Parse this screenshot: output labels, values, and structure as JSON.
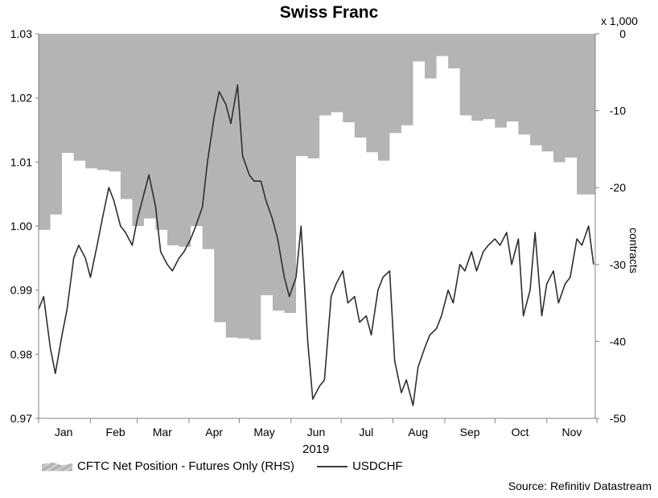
{
  "title": "Swiss Franc",
  "legend": {
    "area_label": "CFTC Net Position - Futures Only (RHS)",
    "line_label": "USDCHF"
  },
  "source": "Source: Refinitiv Datastream",
  "colors": {
    "area_fill": "#b4b4b4",
    "line": "#2e2e2e",
    "plot_bg": "#ffffff",
    "axis": "#808080"
  },
  "chart_data": {
    "type": "line",
    "title": "Swiss Franc",
    "xlabel": "2019",
    "x_tick_labels": [
      "Jan",
      "Feb",
      "Mar",
      "Apr",
      "May",
      "Jun",
      "Jul",
      "Aug",
      "Sep",
      "Oct",
      "Nov"
    ],
    "x_range": [
      "2019-01-01",
      "2019-11-30"
    ],
    "y_left": {
      "range": [
        0.97,
        1.03
      ],
      "ticks": [
        "0.97",
        "0.98",
        "0.99",
        "1.00",
        "1.01",
        "1.02",
        "1.03"
      ]
    },
    "y_right": {
      "label": "contracts",
      "multiplier_label": "x 1,000",
      "range": [
        -50,
        0
      ],
      "ticks": [
        "-50",
        "-40",
        "-30",
        "-20",
        "-10",
        "0"
      ]
    },
    "grid": false,
    "legend_position": "bottom",
    "series": [
      {
        "name": "CFTC Net Position - Futures Only (RHS)",
        "type": "area",
        "axis": "right",
        "x": [
          "2019-01-01",
          "2019-01-08",
          "2019-01-15",
          "2019-01-22",
          "2019-01-29",
          "2019-02-05",
          "2019-02-12",
          "2019-02-19",
          "2019-02-26",
          "2019-03-05",
          "2019-03-12",
          "2019-03-19",
          "2019-03-26",
          "2019-04-02",
          "2019-04-09",
          "2019-04-16",
          "2019-04-23",
          "2019-04-30",
          "2019-05-07",
          "2019-05-14",
          "2019-05-21",
          "2019-05-28",
          "2019-06-04",
          "2019-06-11",
          "2019-06-18",
          "2019-06-25",
          "2019-07-02",
          "2019-07-09",
          "2019-07-16",
          "2019-07-23",
          "2019-07-30",
          "2019-08-06",
          "2019-08-13",
          "2019-08-20",
          "2019-08-27",
          "2019-09-03",
          "2019-09-10",
          "2019-09-17",
          "2019-09-24",
          "2019-10-01",
          "2019-10-08",
          "2019-10-15",
          "2019-10-22",
          "2019-10-29",
          "2019-11-05",
          "2019-11-12",
          "2019-11-19",
          "2019-11-26",
          "2019-11-30"
        ],
        "values": [
          -25.5,
          -23.5,
          -15.5,
          -16.5,
          -17.5,
          -17.7,
          -17.9,
          -21.5,
          -25,
          -24,
          -25.5,
          -27.5,
          -27.7,
          -25,
          -28,
          -37.5,
          -39.5,
          -39.6,
          -39.8,
          -34,
          -36,
          -36.3,
          -15.9,
          -16.2,
          -10.6,
          -10.2,
          -11.5,
          -13.5,
          -15.4,
          -16.5,
          -12.9,
          -11.9,
          -3.6,
          -5.8,
          -2.9,
          -4.5,
          -10.6,
          -11.3,
          -11.1,
          -12.2,
          -11.4,
          -13.1,
          -14.5,
          -15.3,
          -16.7,
          -16.1,
          -20.9,
          -20.9,
          -20.9
        ]
      },
      {
        "name": "USDCHF",
        "type": "line",
        "axis": "left",
        "x": [
          "2019-01-01",
          "2019-01-04",
          "2019-01-08",
          "2019-01-11",
          "2019-01-15",
          "2019-01-18",
          "2019-01-22",
          "2019-01-25",
          "2019-01-29",
          "2019-02-01",
          "2019-02-05",
          "2019-02-08",
          "2019-02-12",
          "2019-02-15",
          "2019-02-19",
          "2019-02-22",
          "2019-02-26",
          "2019-03-01",
          "2019-03-05",
          "2019-03-08",
          "2019-03-12",
          "2019-03-15",
          "2019-03-19",
          "2019-03-22",
          "2019-03-26",
          "2019-03-29",
          "2019-04-02",
          "2019-04-05",
          "2019-04-09",
          "2019-04-12",
          "2019-04-16",
          "2019-04-19",
          "2019-04-23",
          "2019-04-26",
          "2019-04-30",
          "2019-05-03",
          "2019-05-07",
          "2019-05-10",
          "2019-05-14",
          "2019-05-17",
          "2019-05-21",
          "2019-05-24",
          "2019-05-28",
          "2019-05-31",
          "2019-06-04",
          "2019-06-07",
          "2019-06-11",
          "2019-06-14",
          "2019-06-18",
          "2019-06-21",
          "2019-06-25",
          "2019-06-28",
          "2019-07-02",
          "2019-07-05",
          "2019-07-09",
          "2019-07-12",
          "2019-07-16",
          "2019-07-19",
          "2019-07-23",
          "2019-07-26",
          "2019-07-30",
          "2019-08-02",
          "2019-08-06",
          "2019-08-09",
          "2019-08-13",
          "2019-08-16",
          "2019-08-20",
          "2019-08-23",
          "2019-08-27",
          "2019-08-30",
          "2019-09-03",
          "2019-09-06",
          "2019-09-10",
          "2019-09-13",
          "2019-09-17",
          "2019-09-20",
          "2019-09-24",
          "2019-09-27",
          "2019-10-01",
          "2019-10-04",
          "2019-10-08",
          "2019-10-11",
          "2019-10-15",
          "2019-10-18",
          "2019-10-22",
          "2019-10-25",
          "2019-10-29",
          "2019-11-01",
          "2019-11-05",
          "2019-11-08",
          "2019-11-12",
          "2019-11-15",
          "2019-11-19",
          "2019-11-22",
          "2019-11-26",
          "2019-11-29"
        ],
        "values": [
          0.987,
          0.989,
          0.981,
          0.977,
          0.983,
          0.987,
          0.995,
          0.997,
          0.995,
          0.992,
          0.997,
          1.001,
          1.006,
          1.004,
          1.0,
          0.999,
          0.997,
          1.001,
          1.005,
          1.008,
          1.003,
          0.996,
          0.994,
          0.993,
          0.995,
          0.996,
          0.998,
          1.0,
          1.003,
          1.01,
          1.017,
          1.021,
          1.019,
          1.016,
          1.022,
          1.011,
          1.008,
          1.007,
          1.007,
          1.004,
          1.001,
          0.998,
          0.992,
          0.989,
          0.992,
          1.0,
          0.982,
          0.973,
          0.975,
          0.976,
          0.989,
          0.991,
          0.993,
          0.988,
          0.989,
          0.985,
          0.986,
          0.983,
          0.99,
          0.992,
          0.993,
          0.979,
          0.974,
          0.976,
          0.972,
          0.978,
          0.981,
          0.983,
          0.984,
          0.986,
          0.99,
          0.988,
          0.994,
          0.993,
          0.996,
          0.993,
          0.996,
          0.997,
          0.998,
          0.997,
          0.999,
          0.994,
          0.998,
          0.986,
          0.99,
          0.999,
          0.986,
          0.991,
          0.993,
          0.988,
          0.991,
          0.992,
          0.998,
          0.997,
          1.0,
          0.994
        ]
      }
    ]
  }
}
